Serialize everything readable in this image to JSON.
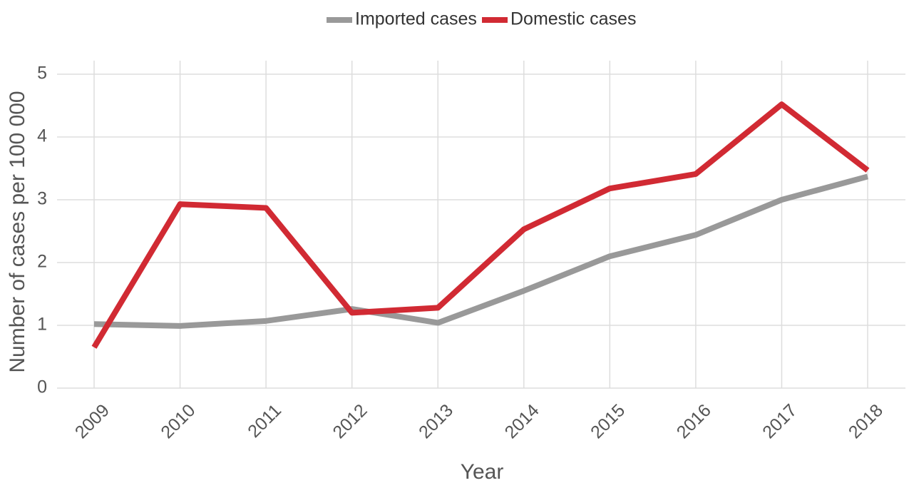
{
  "chart_data": {
    "type": "line",
    "xlabel": "Year",
    "ylabel": "Number of cases per 100 000",
    "categories": [
      "2009",
      "2010",
      "2011",
      "2012",
      "2013",
      "2014",
      "2015",
      "2016",
      "2017",
      "2018"
    ],
    "series": [
      {
        "name": "Imported cases",
        "color": "#999999",
        "values": [
          1.02,
          0.99,
          1.07,
          1.26,
          1.04,
          1.55,
          2.1,
          2.44,
          3.0,
          3.37
        ]
      },
      {
        "name": "Domestic cases",
        "color": "#d12a33",
        "values": [
          0.65,
          2.93,
          2.87,
          1.2,
          1.28,
          2.53,
          3.18,
          3.41,
          4.52,
          3.47
        ]
      }
    ],
    "ylim": [
      0,
      5
    ],
    "yticks": [
      0,
      1,
      2,
      3,
      4,
      5
    ],
    "grid": true,
    "legend": "top"
  }
}
